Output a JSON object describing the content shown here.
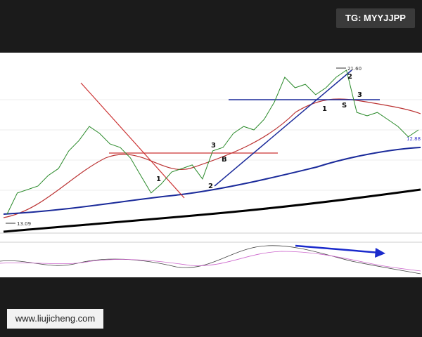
{
  "badge_top": "TG: MYYJJPP",
  "badge_bottom": "www.liujicheng.com",
  "chart": {
    "price_marks": [
      {
        "value": 21.6,
        "label": "21.60"
      },
      {
        "value": 13.09,
        "label": "13.09"
      }
    ],
    "low_label": "12.88",
    "close": [
      13.59,
      14.75,
      14.94,
      15.13,
      15.71,
      16.09,
      17.06,
      17.63,
      18.4,
      18.02,
      17.44,
      17.25,
      16.67,
      15.71,
      14.75,
      15.25,
      15.9,
      16.09,
      16.29,
      15.52,
      17.06,
      17.25,
      18.02,
      18.4,
      18.21,
      18.79,
      19.75,
      21.1,
      20.52,
      20.71,
      20.14,
      20.52,
      21.1,
      21.49,
      19.17,
      18.98,
      19.17,
      18.79,
      18.4,
      17.83,
      18.21
    ],
    "annotations": [
      "1",
      "2",
      "3",
      "B",
      "1",
      "2",
      "3",
      "S"
    ]
  }
}
